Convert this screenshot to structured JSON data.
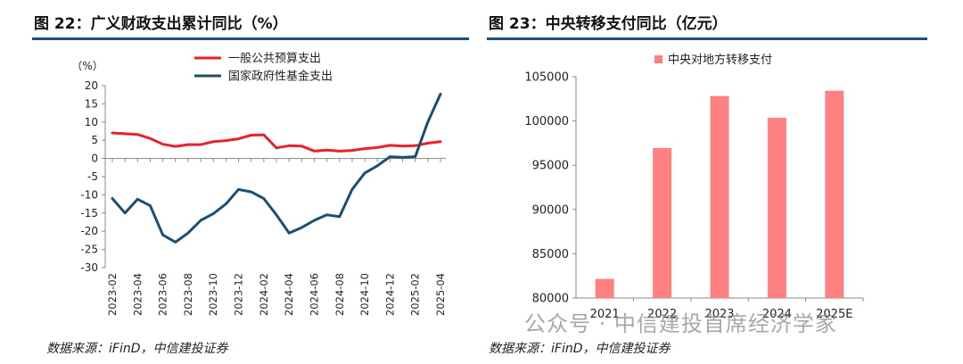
{
  "left_panel": {
    "title": "图 22：广义财政支出累计同比（%）",
    "source": "数据来源：iFinD，中信建投证券"
  },
  "right_panel": {
    "title": "图 23：中央转移支付同比（亿元）",
    "source": "数据来源：iFinD，中信建投证券"
  },
  "watermark": "公众号 · 中信建投首席经济学家",
  "colors": {
    "rule": "#1f4e79",
    "red_line": "#e8212a",
    "blue_line": "#1b4f72",
    "bar": "#ff8080",
    "axis": "#888888"
  },
  "chart_data": [
    {
      "type": "line",
      "unit_label": "（%）",
      "x": [
        "2023-02",
        "2023-03",
        "2023-04",
        "2023-05",
        "2023-06",
        "2023-07",
        "2023-08",
        "2023-09",
        "2023-10",
        "2023-11",
        "2023-12",
        "2024-01",
        "2024-02",
        "2024-03",
        "2024-04",
        "2024-05",
        "2024-06",
        "2024-07",
        "2024-08",
        "2024-09",
        "2024-10",
        "2024-11",
        "2024-12",
        "2025-01",
        "2025-02",
        "2025-03",
        "2025-04"
      ],
      "x_ticks": [
        "2023-02",
        "2023-04",
        "2023-06",
        "2023-08",
        "2023-10",
        "2023-12",
        "2024-02",
        "2024-04",
        "2024-06",
        "2024-08",
        "2024-10",
        "2024-12",
        "2025-02",
        "2025-04"
      ],
      "ylim": [
        -30,
        20
      ],
      "y_ticks": [
        "20",
        "15",
        "10",
        "5",
        "0",
        "-5",
        "-10",
        "-15",
        "-20",
        "-25",
        "-30"
      ],
      "legend_position": "top",
      "series": [
        {
          "name": "一般公共预算支出",
          "color": "#e8212a",
          "values": [
            7.0,
            6.8,
            6.6,
            5.5,
            3.9,
            3.3,
            3.8,
            3.8,
            4.6,
            4.9,
            5.4,
            6.4,
            6.5,
            2.9,
            3.5,
            3.4,
            2.0,
            2.3,
            2.0,
            2.2,
            2.7,
            3.0,
            3.6,
            3.4,
            3.5,
            4.2,
            4.6
          ]
        },
        {
          "name": "国家政府性基金支出",
          "color": "#1b4f72",
          "values": [
            -11.0,
            -15.0,
            -11.2,
            -13.0,
            -21.0,
            -23.0,
            -20.5,
            -17.0,
            -15.2,
            -12.5,
            -8.5,
            -9.2,
            -11.0,
            -15.5,
            -20.5,
            -19.0,
            -17.0,
            -15.5,
            -16.0,
            -8.5,
            -4.0,
            -2.0,
            0.5,
            0.3,
            0.5,
            10.0,
            17.7
          ]
        }
      ]
    },
    {
      "type": "bar",
      "categories": [
        "2021",
        "2022",
        "2023",
        "2024",
        "2025E"
      ],
      "values": [
        82152,
        96941,
        102815,
        100356,
        103415
      ],
      "ylim": [
        80000,
        105000
      ],
      "y_ticks": [
        "105000",
        "100000",
        "95000",
        "90000",
        "85000",
        "80000"
      ],
      "legend_position": "top",
      "series_name": "中央对地方转移支付",
      "color": "#ff8080"
    }
  ]
}
